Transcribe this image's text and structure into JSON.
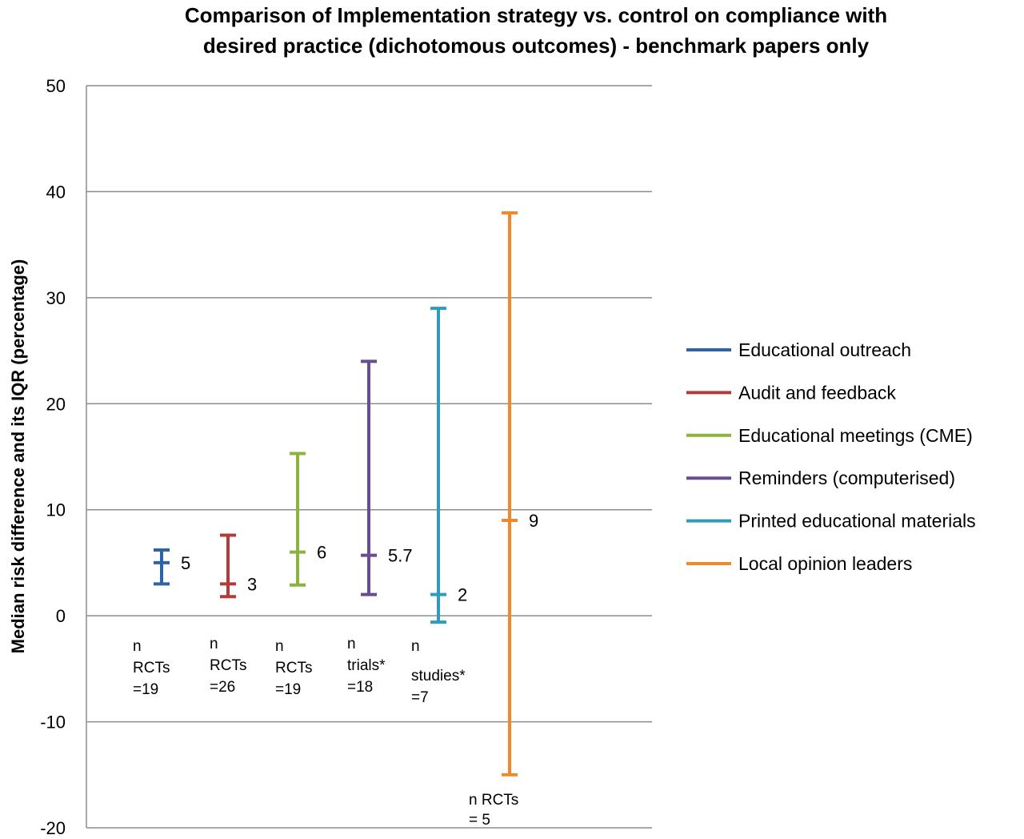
{
  "chart_data": {
    "type": "errorbar",
    "title_line1": "Comparison of Implementation strategy vs. control on compliance with",
    "title_line2": "desired practice (dichotomous outcomes) - benchmark papers only",
    "ylabel": "Median risk difference and its IQR (percentage)",
    "ylim": [
      -20,
      50
    ],
    "yticks": [
      "50",
      "40",
      "30",
      "20",
      "10",
      "0",
      "-10",
      "-20"
    ],
    "grid": true,
    "legend_position": "right",
    "series": [
      {
        "name": "Educational outreach",
        "color": "#2e63a6",
        "low": 3,
        "median": 5,
        "high": 6.2,
        "value_label": "5",
        "n_label": [
          "n",
          "RCTs",
          "=19"
        ]
      },
      {
        "name": "Audit and feedback",
        "color": "#b43a3a",
        "low": 1.8,
        "median": 3,
        "high": 7.6,
        "value_label": "3",
        "n_label": [
          "n",
          "RCTs",
          "=26"
        ]
      },
      {
        "name": "Educational meetings (CME)",
        "color": "#8db33f",
        "low": 2.9,
        "median": 6,
        "high": 15.3,
        "value_label": "6",
        "n_label": [
          "n",
          "RCTs",
          "=19"
        ]
      },
      {
        "name": "Reminders (computerised)",
        "color": "#6a4c93",
        "low": 2,
        "median": 5.7,
        "high": 24,
        "value_label": "5.7",
        "n_label": [
          "n",
          "trials*",
          "=18"
        ]
      },
      {
        "name": "Printed educational materials",
        "color": "#2e9bbf",
        "low": -0.6,
        "median": 2,
        "high": 29,
        "value_label": "2",
        "n_label": [
          "n",
          "studies*",
          "=7"
        ]
      },
      {
        "name": "Local opinion leaders",
        "color": "#ef8a2c",
        "low": -15,
        "median": 9,
        "high": 38,
        "value_label": "9",
        "n_label": [
          "n RCTs",
          "= 5"
        ]
      }
    ]
  }
}
